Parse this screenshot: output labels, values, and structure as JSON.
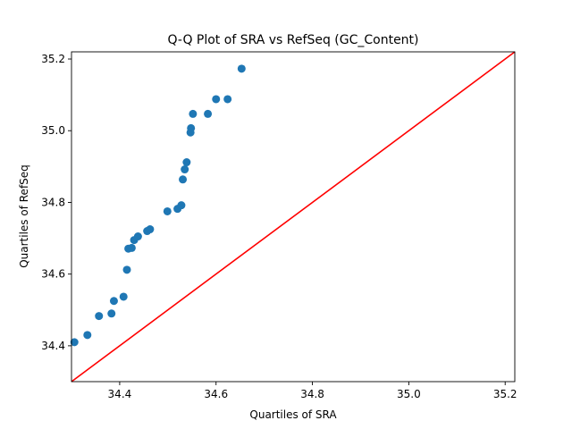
{
  "chart_data": {
    "type": "scatter",
    "title": "Q-Q Plot of SRA vs RefSeq (GC_Content)",
    "xlabel": "Quartiles of SRA",
    "ylabel": "Quartiles of RefSeq",
    "xlim": [
      34.3,
      35.22
    ],
    "ylim": [
      34.3,
      35.22
    ],
    "xticks": [
      34.4,
      34.6,
      34.8,
      35.0,
      35.2
    ],
    "xtick_labels": [
      "34.4",
      "34.6",
      "34.8",
      "35.0",
      "35.2"
    ],
    "yticks": [
      34.4,
      34.6,
      34.8,
      35.0,
      35.2
    ],
    "ytick_labels": [
      "34.4",
      "34.6",
      "34.8",
      "35.0",
      "35.2"
    ],
    "grid": false,
    "point_color": "#1f77b4",
    "reference_line": {
      "from": [
        34.3,
        34.3
      ],
      "to": [
        35.22,
        35.22
      ],
      "color": "#ff0000"
    },
    "points": [
      [
        34.306,
        34.41
      ],
      [
        34.333,
        34.43
      ],
      [
        34.357,
        34.483
      ],
      [
        34.383,
        34.49
      ],
      [
        34.388,
        34.525
      ],
      [
        34.408,
        34.537
      ],
      [
        34.415,
        34.612
      ],
      [
        34.418,
        34.671
      ],
      [
        34.425,
        34.673
      ],
      [
        34.43,
        34.695
      ],
      [
        34.438,
        34.705
      ],
      [
        34.457,
        34.72
      ],
      [
        34.463,
        34.725
      ],
      [
        34.499,
        34.775
      ],
      [
        34.52,
        34.782
      ],
      [
        34.528,
        34.792
      ],
      [
        34.531,
        34.864
      ],
      [
        34.535,
        34.892
      ],
      [
        34.539,
        34.912
      ],
      [
        34.547,
        34.995
      ],
      [
        34.548,
        35.007
      ],
      [
        34.552,
        35.047
      ],
      [
        34.583,
        35.047
      ],
      [
        34.6,
        35.088
      ],
      [
        34.624,
        35.088
      ],
      [
        34.653,
        35.173
      ]
    ]
  }
}
